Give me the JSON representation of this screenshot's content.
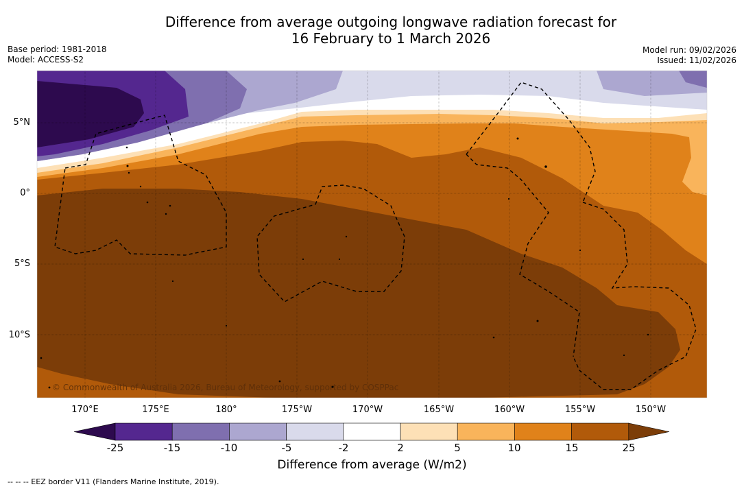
{
  "title": {
    "line1": "Difference from average outgoing longwave radiation forecast for",
    "line2": "16 February to 1 March 2026"
  },
  "meta": {
    "base_period": "Base period: 1981-2018",
    "model": "Model: ACCESS-S2",
    "model_run": "Model run: 09/02/2026",
    "issued": "Issued: 11/02/2026"
  },
  "map": {
    "lat_labels": [
      "5°N",
      "0°",
      "5°S",
      "10°S"
    ],
    "lon_labels": [
      "170°E",
      "175°E",
      "180°",
      "175°W",
      "170°W",
      "165°W",
      "160°W",
      "155°W",
      "150°W"
    ],
    "copyright": "© Commonwealth of Australia 2026, Bureau of Meteorology, supported by COSPPac"
  },
  "colorbar": {
    "title": "Difference from average (W/m2)",
    "tick_labels": [
      "-25",
      "-15",
      "-10",
      "-5",
      "-2",
      "2",
      "5",
      "10",
      "15",
      "25"
    ],
    "colors": [
      "#2d0a4e",
      "#54278f",
      "#7f6faf",
      "#aca7d0",
      "#d9daeb",
      "#ffffff",
      "#fde0b6",
      "#f9b45b",
      "#e0821a",
      "#b15a0a",
      "#7c3d08"
    ]
  },
  "footnote": "--  --  -- EEZ border V11 (Flanders Marine Institute, 2019)."
}
